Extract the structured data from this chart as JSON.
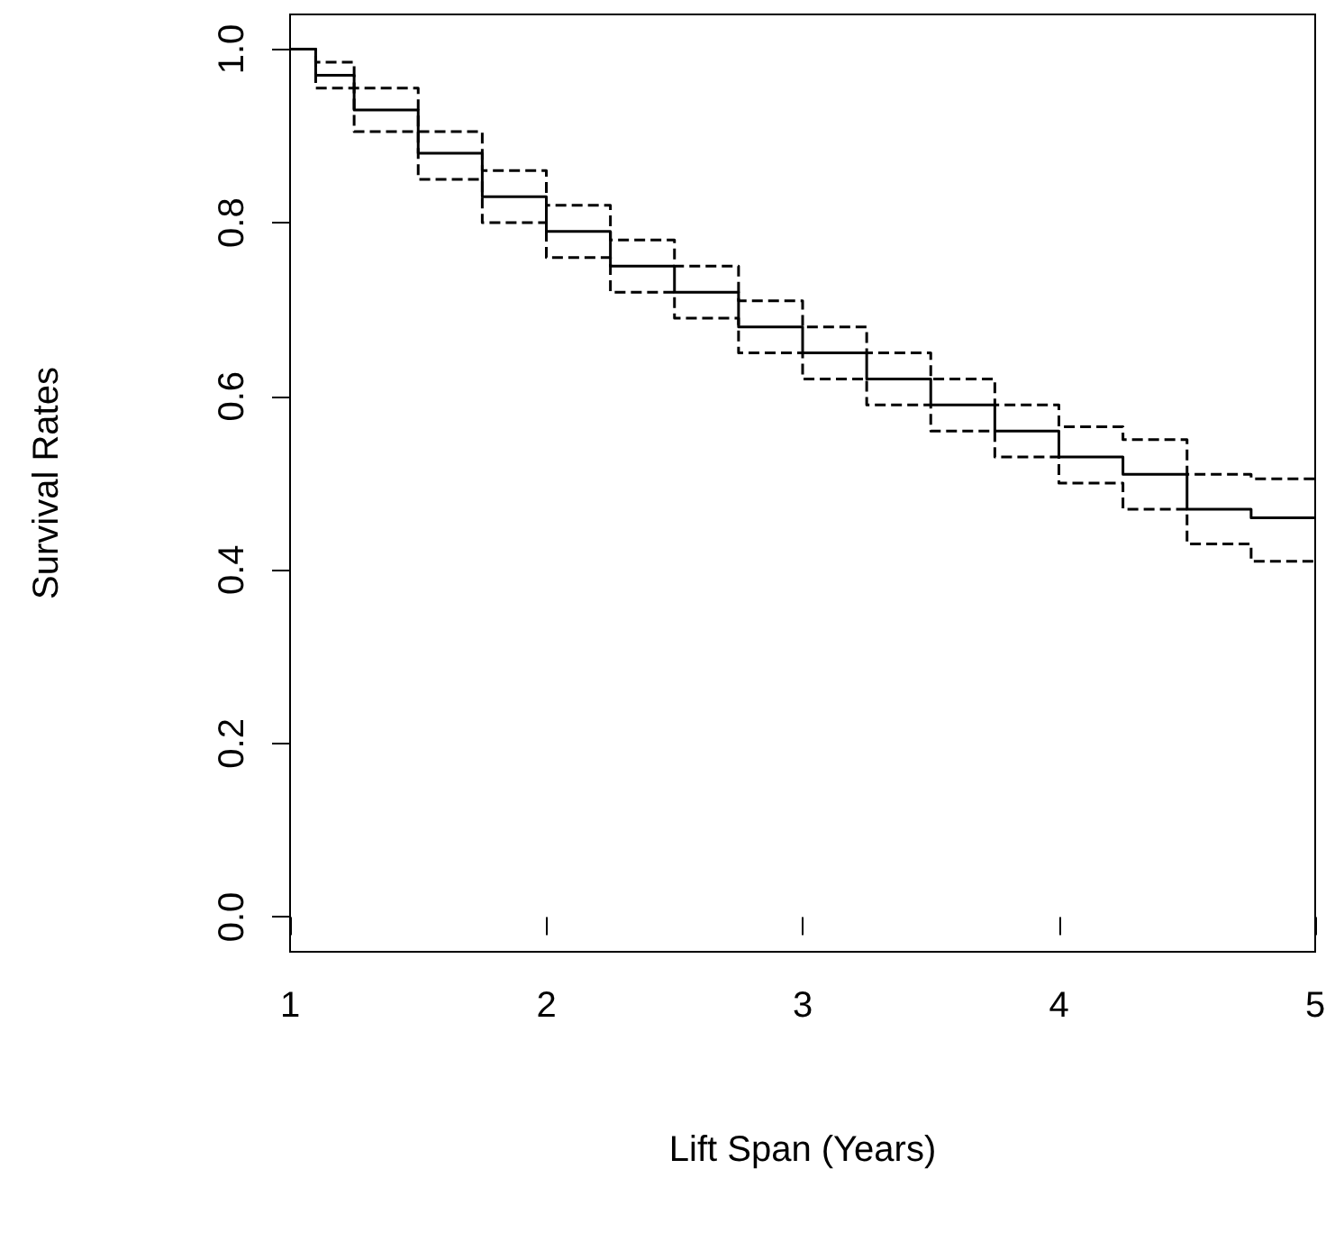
{
  "chart_data": {
    "type": "step",
    "xlabel": "Lift Span (Years)",
    "ylabel": "Survival Rates",
    "x": [
      1,
      1.1,
      1.25,
      1.5,
      1.75,
      2,
      2.25,
      2.5,
      2.75,
      3,
      3.25,
      3.5,
      3.75,
      4,
      4.25,
      4.5,
      4.75,
      5
    ],
    "series": [
      {
        "color": "#000000",
        "line_style": "solid",
        "values": [
          1.0,
          0.97,
          0.93,
          0.88,
          0.83,
          0.79,
          0.75,
          0.72,
          0.68,
          0.65,
          0.62,
          0.59,
          0.56,
          0.53,
          0.51,
          0.47,
          0.46,
          0.46
        ]
      },
      {
        "color": "#000000",
        "line_style": "dashed",
        "values": [
          1.0,
          0.985,
          0.955,
          0.905,
          0.86,
          0.82,
          0.78,
          0.75,
          0.71,
          0.68,
          0.65,
          0.62,
          0.59,
          0.565,
          0.55,
          0.51,
          0.505,
          0.505
        ]
      },
      {
        "color": "#000000",
        "line_style": "dashed",
        "values": [
          1.0,
          0.955,
          0.905,
          0.85,
          0.8,
          0.76,
          0.72,
          0.69,
          0.65,
          0.62,
          0.59,
          0.56,
          0.53,
          0.5,
          0.47,
          0.43,
          0.41,
          0.41
        ]
      }
    ],
    "xlim": [
      1,
      5
    ],
    "ylim": [
      -0.04,
      1.04
    ],
    "xticks": [
      1,
      2,
      3,
      4,
      5
    ],
    "yticks": [
      {
        "value": 0,
        "label": "0.0"
      },
      0.2,
      0.4,
      0.6,
      0.8,
      {
        "value": 1,
        "label": "1.0"
      }
    ],
    "marker": "none"
  }
}
